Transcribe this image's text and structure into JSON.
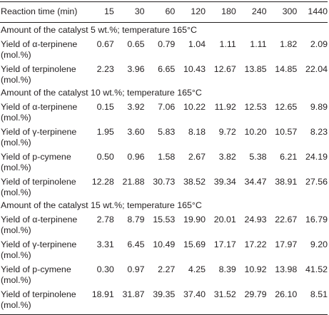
{
  "header": [
    "Reaction time (min)",
    "15",
    "30",
    "60",
    "120",
    "180",
    "240",
    "300",
    "1440"
  ],
  "sections": [
    {
      "title": "Amount of the catalyst 5 wt.%; temperature 165°C",
      "rows": [
        {
          "label": [
            "Yield of α-terpinene",
            "(mol.%)"
          ],
          "values": [
            "0.67",
            "0.65",
            "0.79",
            "1.04",
            "1.11",
            "1.11",
            "1.82",
            "2.09"
          ]
        },
        {
          "label": [
            "Yield of terpinolene",
            "(mol.%)"
          ],
          "values": [
            "2.23",
            "3.96",
            "6.65",
            "10.43",
            "12.67",
            "13.85",
            "14.85",
            "22.04"
          ]
        }
      ]
    },
    {
      "title": "Amount of the catalyst 10 wt.%; temperature 165°C",
      "rows": [
        {
          "label": [
            "Yield of α-terpinene",
            "(mol.%)"
          ],
          "values": [
            "0.15",
            "3.92",
            "7.06",
            "10.22",
            "11.92",
            "12.53",
            "12.65",
            "9.89"
          ]
        },
        {
          "label": [
            "Yield of γ-terpinene",
            "(mol.%)"
          ],
          "values": [
            "1.95",
            "3.60",
            "5.83",
            "8.18",
            "9.72",
            "10.20",
            "10.57",
            "8.23"
          ]
        },
        {
          "label": [
            "Yield of p-cymene",
            "(mol.%)"
          ],
          "values": [
            "0.50",
            "0.96",
            "1.58",
            "2.67",
            "3.82",
            "5.38",
            "6.21",
            "24.19"
          ]
        },
        {
          "label": [
            "Yield of terpinolene",
            "(mol.%)"
          ],
          "values": [
            "12.28",
            "21.88",
            "30.73",
            "38.52",
            "39.34",
            "34.47",
            "38.91",
            "27.56"
          ]
        }
      ]
    },
    {
      "title": "Amount of the catalyst 15 wt.%; temperature 165°C",
      "rows": [
        {
          "label": [
            "Yield of α-terpinene",
            "(mol.%)"
          ],
          "values": [
            "2.78",
            "8.79",
            "15.53",
            "19.90",
            "20.01",
            "24.93",
            "22.67",
            "16.79"
          ]
        },
        {
          "label": [
            "Yield of γ-terpinene",
            "(mol.%)"
          ],
          "values": [
            "3.31",
            "6.45",
            "10.49",
            "15.69",
            "17.17",
            "17.22",
            "17.97",
            "9.20"
          ]
        },
        {
          "label": [
            "Yield of p-cymene",
            "(mol.%)"
          ],
          "values": [
            "0.30",
            "0.97",
            "2.27",
            "4.25",
            "8.39",
            "10.92",
            "13.98",
            "41.52"
          ]
        },
        {
          "label": [
            "Yield of terpinolene",
            "(mol.%)"
          ],
          "values": [
            "18.91",
            "31.87",
            "39.35",
            "37.40",
            "31.52",
            "29.79",
            "26.10",
            "8.51"
          ]
        }
      ]
    }
  ]
}
